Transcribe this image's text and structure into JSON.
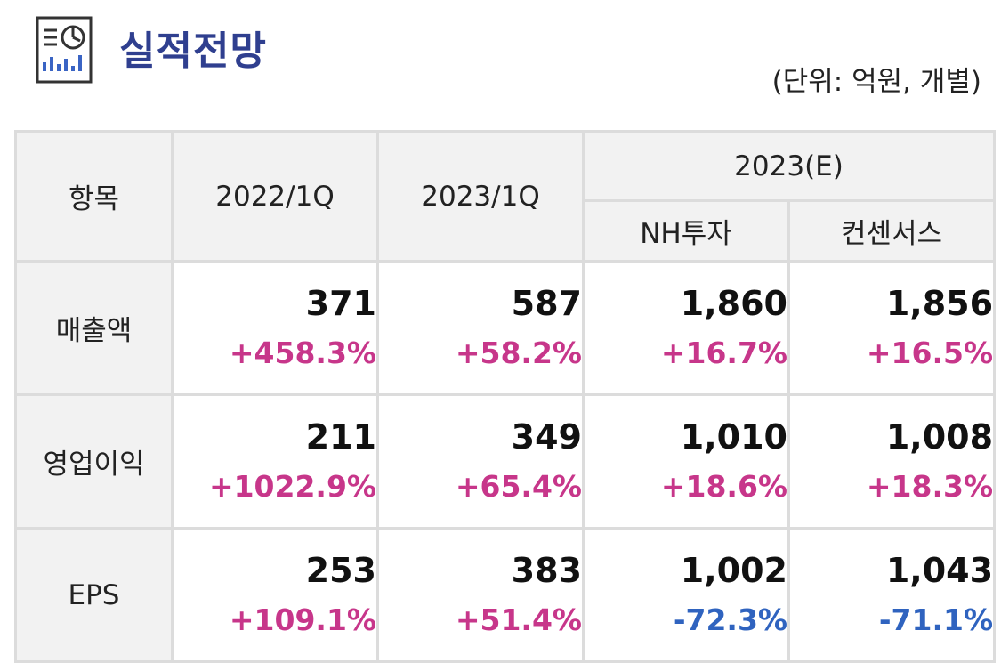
{
  "header": {
    "title": "실적전망",
    "unit": "(단위: 억원, 개별)",
    "icon": "report-chart-icon"
  },
  "table": {
    "col_item": "항목",
    "col_q1": "2022/1Q",
    "col_q2": "2023/1Q",
    "col_est": "2023(E)",
    "col_nh": "NH투자",
    "col_cons": "컨센서스",
    "rows": [
      {
        "label": "매출액",
        "cells": [
          {
            "value": "371",
            "change": "+458.3%"
          },
          {
            "value": "587",
            "change": "+58.2%"
          },
          {
            "value": "1,860",
            "change": "+16.7%"
          },
          {
            "value": "1,856",
            "change": "+16.5%"
          }
        ]
      },
      {
        "label": "영업이익",
        "cells": [
          {
            "value": "211",
            "change": "+1022.9%"
          },
          {
            "value": "349",
            "change": "+65.4%"
          },
          {
            "value": "1,010",
            "change": "+18.6%"
          },
          {
            "value": "1,008",
            "change": "+18.3%"
          }
        ]
      },
      {
        "label": "EPS",
        "cells": [
          {
            "value": "253",
            "change": "+109.1%"
          },
          {
            "value": "383",
            "change": "+51.4%"
          },
          {
            "value": "1,002",
            "change": "-72.3%"
          },
          {
            "value": "1,043",
            "change": "-71.1%"
          }
        ]
      }
    ]
  },
  "colors": {
    "title": "#2f3f8f",
    "positive": "#c7368a",
    "negative": "#2f63bf"
  }
}
